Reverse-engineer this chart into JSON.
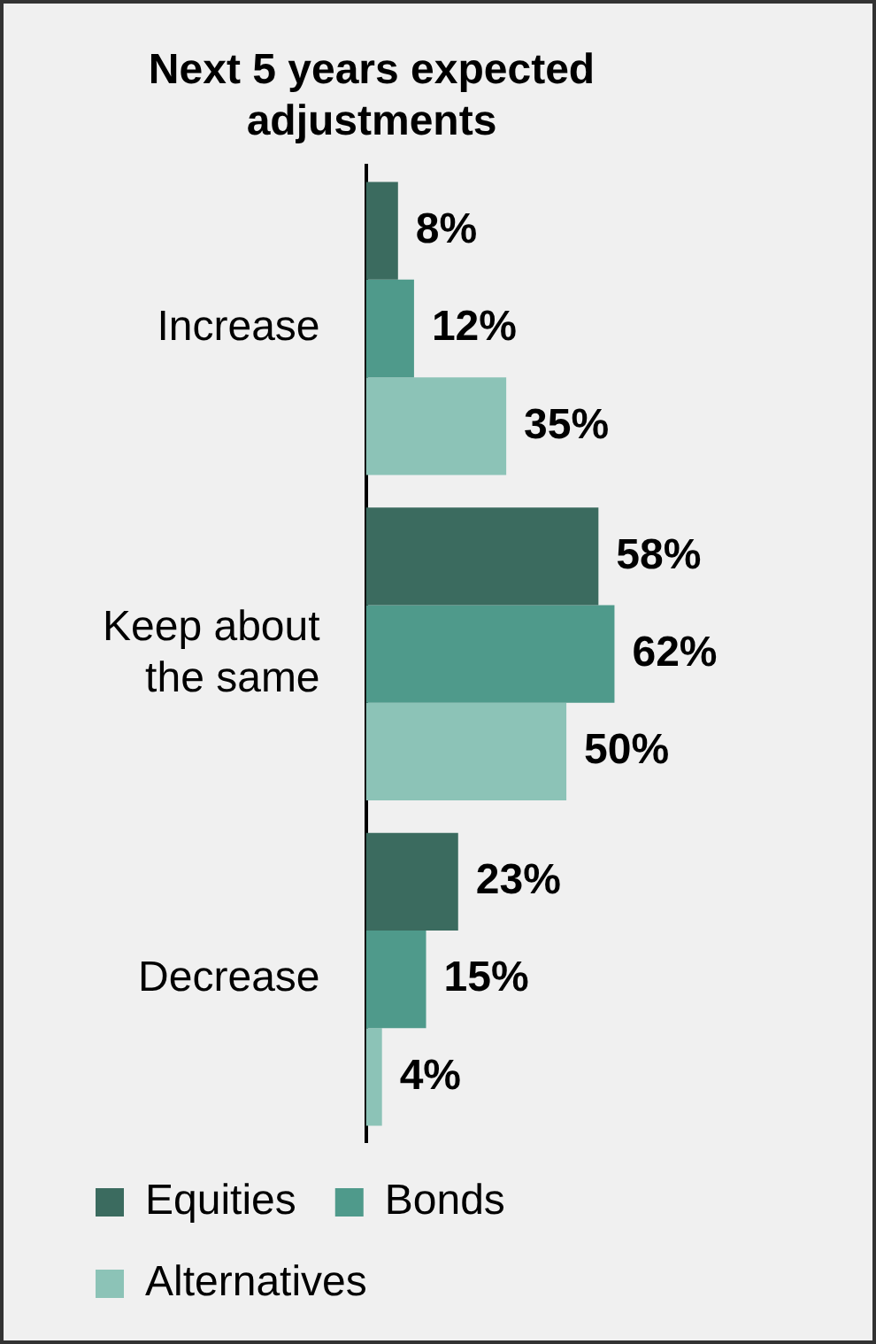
{
  "chart_data": {
    "type": "bar",
    "orientation": "horizontal",
    "title": "Next 5 years expected adjustments",
    "categories": [
      "Increase",
      "Keep about the same",
      "Decrease"
    ],
    "series": [
      {
        "name": "Equities",
        "color": "#3b6b5f",
        "values": [
          8,
          58,
          23
        ],
        "value_labels": [
          "8%",
          "58%",
          "23%"
        ]
      },
      {
        "name": "Bonds",
        "color": "#4f9a8b",
        "values": [
          12,
          62,
          15
        ],
        "value_labels": [
          "12%",
          "62%",
          "15%"
        ]
      },
      {
        "name": "Alternatives",
        "color": "#8cc3b7",
        "values": [
          35,
          50,
          4
        ],
        "value_labels": [
          "35%",
          "50%",
          "4%"
        ]
      }
    ],
    "tick_labels": "y",
    "legend": "bottom"
  }
}
